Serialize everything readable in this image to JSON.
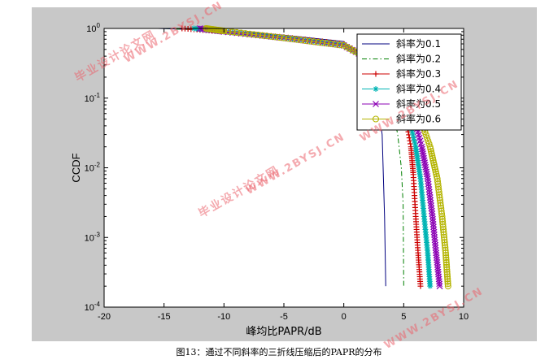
{
  "chart_data": {
    "type": "line",
    "title": "",
    "xlabel": "峰均比PAPR/dB",
    "ylabel": "CCDF",
    "xlim": [
      -20,
      10
    ],
    "ylim_log10": [
      -4,
      0
    ],
    "yscale": "log",
    "xticks": [
      -20,
      -15,
      -10,
      -5,
      0,
      5,
      10
    ],
    "yticks": [
      {
        "base": "10",
        "exp": "0"
      },
      {
        "base": "10",
        "exp": "-1"
      },
      {
        "base": "10",
        "exp": "-2"
      },
      {
        "base": "10",
        "exp": "-3"
      },
      {
        "base": "10",
        "exp": "-4"
      }
    ],
    "legend_position": "top-right",
    "series": [
      {
        "name": "斜率为0.1",
        "color": "#00007f",
        "marker": "none",
        "dash": "solid",
        "x": [
          -15.5,
          -10,
          -5,
          0,
          1,
          2,
          2.8,
          3.2,
          3.4,
          3.5
        ],
        "y": [
          1.0,
          0.93,
          0.8,
          0.65,
          0.45,
          0.25,
          0.1,
          0.03,
          0.002,
          0.0002
        ]
      },
      {
        "name": "斜率为0.2",
        "color": "#007f00",
        "marker": "none",
        "dash": "dashdot",
        "x": [
          -15,
          -10,
          -5,
          0,
          2,
          3,
          4,
          4.5,
          4.8,
          4.95,
          5.0
        ],
        "y": [
          1.0,
          0.92,
          0.78,
          0.62,
          0.4,
          0.2,
          0.08,
          0.03,
          0.01,
          0.003,
          0.0002
        ]
      },
      {
        "name": "斜率为0.3",
        "color": "#cc0000",
        "marker": "plus",
        "dash": "solid",
        "x": [
          -13.5,
          -10,
          -5,
          0,
          3,
          5,
          5.6,
          5.8,
          6.0,
          6.2,
          6.4
        ],
        "y": [
          1.0,
          0.9,
          0.75,
          0.6,
          0.3,
          0.08,
          0.02,
          0.008,
          0.002,
          0.0006,
          0.0002
        ]
      },
      {
        "name": "斜率为0.4",
        "color": "#00b4b4",
        "marker": "star",
        "dash": "solid",
        "x": [
          -12.5,
          -10,
          -5,
          0,
          3,
          5.2,
          6.0,
          6.4,
          6.7,
          7.0,
          7.2
        ],
        "y": [
          1.0,
          0.9,
          0.74,
          0.58,
          0.28,
          0.08,
          0.02,
          0.007,
          0.002,
          0.0006,
          0.0002
        ]
      },
      {
        "name": "斜率为0.5",
        "color": "#8b00b4",
        "marker": "x",
        "dash": "solid",
        "x": [
          -12,
          -10,
          -5,
          0,
          3.5,
          5.6,
          6.5,
          7.0,
          7.4,
          7.7,
          8.0
        ],
        "y": [
          1.0,
          0.9,
          0.73,
          0.57,
          0.27,
          0.08,
          0.02,
          0.007,
          0.002,
          0.0006,
          0.0002
        ]
      },
      {
        "name": "斜率为0.6",
        "color": "#b4b400",
        "marker": "circle",
        "dash": "solid",
        "x": [
          -11.5,
          -10,
          -5,
          0,
          3.5,
          6.0,
          7.2,
          7.8,
          8.2,
          8.5,
          8.7
        ],
        "y": [
          1.0,
          0.92,
          0.73,
          0.57,
          0.27,
          0.08,
          0.02,
          0.007,
          0.002,
          0.0006,
          0.0002
        ]
      }
    ]
  },
  "caption": "图13：通过不同斜率的三折线压缩后的PAPR的分布",
  "watermarks": {
    "site_url": "WWW.2BYSJ.CN",
    "site_name": "毕业设计论文网"
  }
}
